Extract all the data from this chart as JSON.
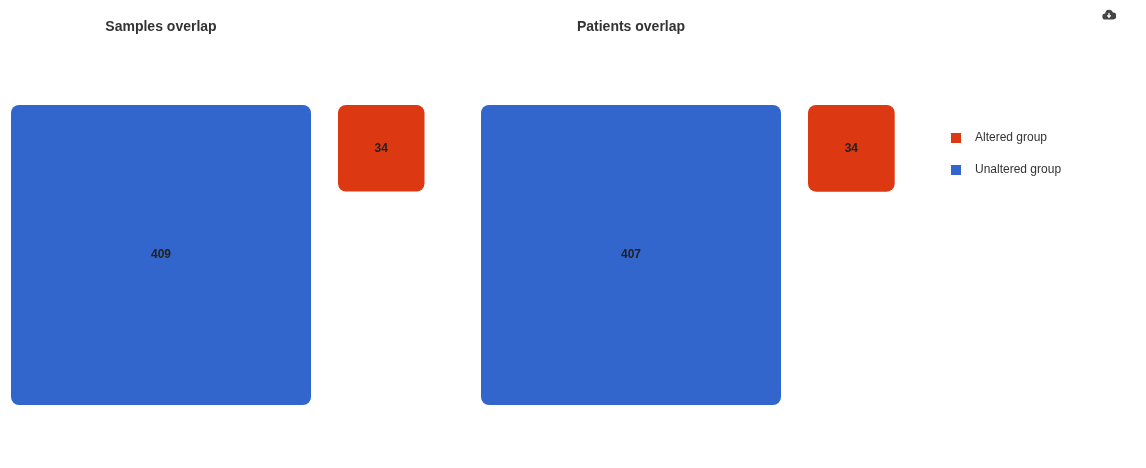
{
  "chart_data": [
    {
      "type": "other",
      "title": "Samples overlap",
      "data_labels": true,
      "categories": [
        null,
        null
      ],
      "values": [
        34,
        409
      ],
      "colors": [
        "#dc3912",
        "#3366cc"
      ]
    },
    {
      "type": "other",
      "title": "Patients overlap",
      "data_labels": true,
      "categories": [
        "Altered group",
        "Unaltered group"
      ],
      "values": [
        34,
        407
      ],
      "colors": [
        "#dc3912",
        "#3366cc"
      ]
    }
  ]
}
